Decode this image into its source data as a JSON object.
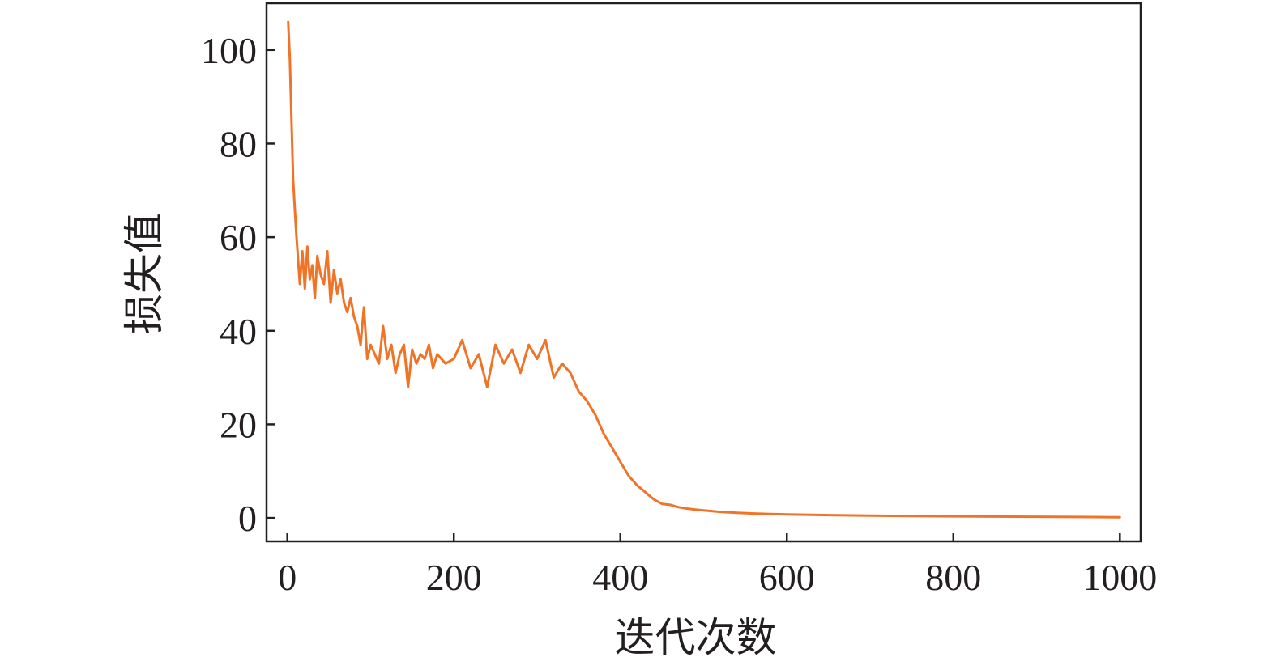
{
  "chart_data": {
    "type": "line",
    "xlabel": "迭代次数",
    "ylabel": "损失值",
    "xlim": [
      -25,
      1025
    ],
    "ylim": [
      -5,
      110
    ],
    "x_ticks": [
      0,
      200,
      400,
      600,
      800,
      1000
    ],
    "y_ticks": [
      0,
      20,
      40,
      60,
      80,
      100
    ],
    "x_tick_labels": [
      "0",
      "200",
      "400",
      "600",
      "800",
      "1000"
    ],
    "y_tick_labels": [
      "0",
      "20",
      "40",
      "60",
      "80",
      "100"
    ],
    "grid": false,
    "legend": "none",
    "series": [
      {
        "color": "#f07427",
        "x": [
          1,
          3,
          5,
          7,
          9,
          11,
          13,
          15,
          18,
          21,
          24,
          27,
          30,
          33,
          36,
          40,
          44,
          48,
          52,
          56,
          60,
          64,
          68,
          72,
          76,
          80,
          84,
          88,
          92,
          96,
          100,
          105,
          110,
          115,
          120,
          125,
          130,
          135,
          140,
          145,
          150,
          155,
          160,
          165,
          170,
          175,
          180,
          190,
          200,
          210,
          220,
          230,
          240,
          250,
          260,
          270,
          280,
          290,
          300,
          310,
          320,
          330,
          340,
          350,
          360,
          370,
          380,
          390,
          400,
          410,
          420,
          430,
          440,
          450,
          460,
          470,
          480,
          490,
          500,
          520,
          540,
          560,
          580,
          600,
          650,
          700,
          750,
          800,
          850,
          900,
          950,
          1000
        ],
        "y": [
          106,
          98,
          85,
          72,
          66,
          60,
          55,
          50,
          57,
          49,
          58,
          51,
          54,
          47,
          56,
          52,
          50,
          57,
          46,
          53,
          48,
          51,
          46,
          44,
          47,
          43,
          41,
          37,
          45,
          34,
          37,
          35,
          33,
          41,
          34,
          37,
          31,
          35,
          37,
          28,
          36,
          33,
          35,
          34,
          37,
          32,
          35,
          33,
          34,
          38,
          32,
          35,
          28,
          37,
          33,
          36,
          31,
          37,
          34,
          38,
          30,
          33,
          31,
          27,
          25,
          22,
          18,
          15,
          12,
          9,
          7,
          5.5,
          4,
          3,
          2.8,
          2.3,
          2.0,
          1.8,
          1.6,
          1.3,
          1.1,
          0.95,
          0.85,
          0.75,
          0.6,
          0.5,
          0.4,
          0.35,
          0.3,
          0.25,
          0.2,
          0.15
        ]
      }
    ]
  }
}
